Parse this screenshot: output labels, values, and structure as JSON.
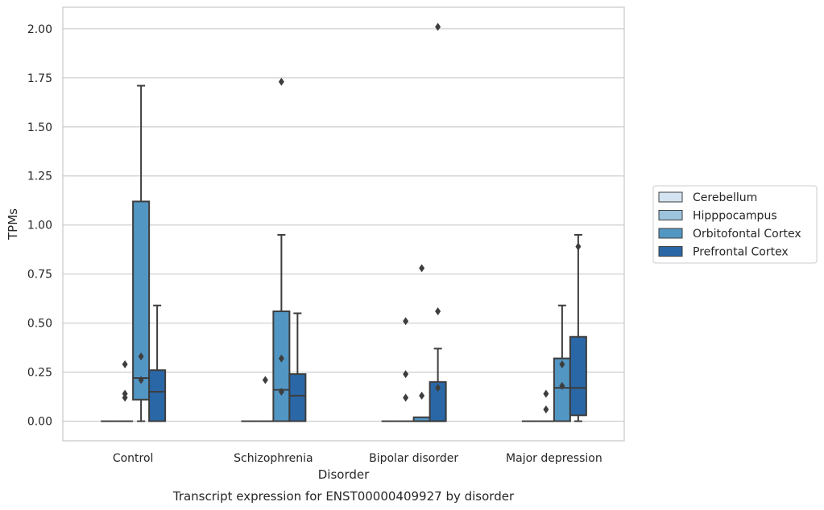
{
  "chart_data": {
    "type": "box",
    "title": "",
    "caption": "Transcript expression for ENST00000409927 by disorder",
    "xlabel": "Disorder",
    "ylabel": "TPMs",
    "ylim": [
      -0.1,
      2.11
    ],
    "yticks": [
      "0.00",
      "0.25",
      "0.50",
      "0.75",
      "1.00",
      "1.25",
      "1.50",
      "1.75",
      "2.00"
    ],
    "grid": true,
    "legend_position": "right",
    "categories": [
      "Control",
      "Schizophrenia",
      "Bipolar disorder",
      "Major depression"
    ],
    "series": [
      {
        "name": "Cerebellum",
        "color": "#d4e3f1",
        "boxes": [
          {
            "whislo": 0,
            "q1": 0,
            "med": 0,
            "q3": 0,
            "whishi": 0,
            "fliers": []
          },
          {
            "whislo": 0,
            "q1": 0,
            "med": 0,
            "q3": 0,
            "whishi": 0,
            "fliers": []
          },
          {
            "whislo": 0,
            "q1": 0,
            "med": 0,
            "q3": 0,
            "whishi": 0,
            "fliers": []
          },
          {
            "whislo": 0,
            "q1": 0,
            "med": 0,
            "q3": 0,
            "whishi": 0,
            "fliers": []
          }
        ]
      },
      {
        "name": "Hipppocampus",
        "color": "#9cc4dd",
        "boxes": [
          {
            "whislo": 0,
            "q1": 0,
            "med": 0,
            "q3": 0,
            "whishi": 0,
            "fliers": [
              0.12,
              0.14,
              0.29
            ]
          },
          {
            "whislo": 0,
            "q1": 0,
            "med": 0,
            "q3": 0,
            "whishi": 0,
            "fliers": [
              0.21
            ]
          },
          {
            "whislo": 0,
            "q1": 0,
            "med": 0,
            "q3": 0,
            "whishi": 0,
            "fliers": [
              0.12,
              0.24,
              0.51
            ]
          },
          {
            "whislo": 0,
            "q1": 0,
            "med": 0,
            "q3": 0,
            "whishi": 0,
            "fliers": [
              0.06,
              0.14
            ]
          }
        ]
      },
      {
        "name": "Orbitofontal Cortex",
        "color": "#5296c4",
        "boxes": [
          {
            "whislo": 0,
            "q1": 0.11,
            "med": 0.22,
            "q3": 1.12,
            "whishi": 1.71,
            "fliers": [
              0.21,
              0.33
            ]
          },
          {
            "whislo": 0,
            "q1": 0,
            "med": 0.16,
            "q3": 0.56,
            "whishi": 0.95,
            "fliers": [
              0.15,
              0.32,
              1.73
            ]
          },
          {
            "whislo": 0,
            "q1": 0,
            "med": 0,
            "q3": 0.02,
            "whishi": 0.02,
            "fliers": [
              0.13,
              0.78
            ]
          },
          {
            "whislo": 0,
            "q1": 0,
            "med": 0.17,
            "q3": 0.32,
            "whishi": 0.59,
            "fliers": [
              0.18,
              0.29
            ]
          }
        ]
      },
      {
        "name": "Prefrontal Cortex",
        "color": "#2a67a6",
        "boxes": [
          {
            "whislo": 0,
            "q1": 0,
            "med": 0.15,
            "q3": 0.26,
            "whishi": 0.59,
            "fliers": []
          },
          {
            "whislo": 0,
            "q1": 0,
            "med": 0.13,
            "q3": 0.24,
            "whishi": 0.55,
            "fliers": []
          },
          {
            "whislo": 0,
            "q1": 0,
            "med": 0,
            "q3": 0.2,
            "whishi": 0.37,
            "fliers": [
              0.17,
              0.56,
              2.01
            ]
          },
          {
            "whislo": 0,
            "q1": 0.03,
            "med": 0.17,
            "q3": 0.43,
            "whishi": 0.95,
            "fliers": [
              0.89
            ]
          }
        ]
      }
    ]
  }
}
